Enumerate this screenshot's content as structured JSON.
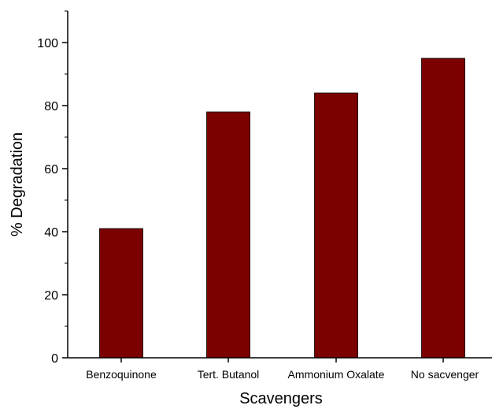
{
  "chart_data": {
    "type": "bar",
    "categories": [
      "Benzoquinone",
      "Tert. Butanol",
      "Ammonium Oxalate",
      "No sacvenger"
    ],
    "values": [
      41,
      78,
      84,
      95
    ],
    "xlabel": "Scavengers",
    "ylabel": "% Degradation",
    "ylim": [
      0,
      110
    ],
    "yticks": [
      0,
      20,
      40,
      60,
      80,
      100
    ],
    "bar_color": "#7b0000",
    "grid": false,
    "legend": "none"
  }
}
